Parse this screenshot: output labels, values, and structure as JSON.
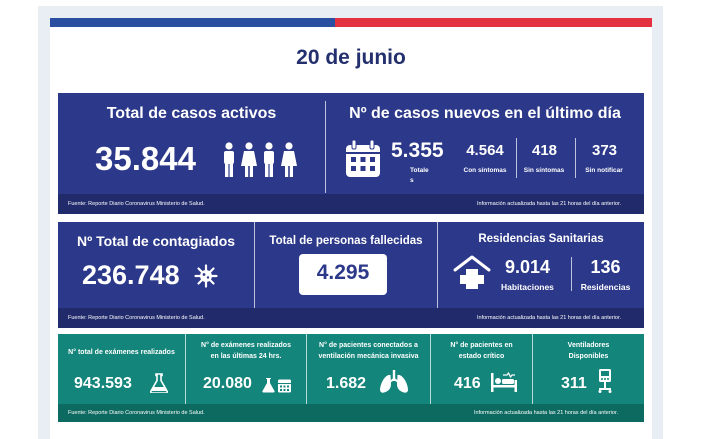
{
  "date": "20 de junio",
  "row1": {
    "activos": {
      "title": "Total de casos activos",
      "value": "35.844"
    },
    "nuevos": {
      "title": "Nº de casos nuevos en el último día",
      "total_value": "5.355",
      "total_label": "Totale",
      "total_label2": "s",
      "con_value": "4.564",
      "con_label": "Con síntomas",
      "sin_value": "418",
      "sin_label": "Sin síntomas",
      "notif_value": "373",
      "notif_label": "Sin notificar"
    },
    "footer_left": "Fuente: Reporte Diario Coronavirus Ministerio de Salud.",
    "footer_right": "Información actualizada hasta las 21 horas  del día anterior."
  },
  "row2": {
    "contagiados": {
      "title": "Nº Total de contagiados",
      "value": "236.748"
    },
    "fallecidas": {
      "title": "Total de personas fallecidas",
      "value": "4.295"
    },
    "residencias": {
      "title": "Residencias Sanitarias",
      "hab_value": "9.014",
      "hab_label": "Habitaciones",
      "res_value": "136",
      "res_label": "Residencias"
    },
    "footer_left": "Fuente: Reporte Diario Coronavirus Ministerio de Salud.",
    "footer_right": "Información actualizada hasta las 21 horas  del día anterior."
  },
  "row3": {
    "examenes": {
      "label": "N° total de exámenes realizados",
      "value": "943.593"
    },
    "examenes24": {
      "label1": "N° de exámenes realizados",
      "label2": "en las últimas 24 hrs.",
      "value": "20.080"
    },
    "ventilacion": {
      "label1": "N° de pacientes conectados a",
      "label2": "ventilación mecánica invasiva",
      "value": "1.682"
    },
    "critico": {
      "label1": "N° de pacientes  en",
      "label2": "estado crítico",
      "value": "416"
    },
    "ventiladores": {
      "label1": "Ventiladores",
      "label2": "Disponibles",
      "value": "311"
    },
    "footer_left": "Fuente: Reporte Diario Coronavirus Ministerio de Salud.",
    "footer_right": "Información actualizada hasta las 21 horas  del día anterior."
  }
}
